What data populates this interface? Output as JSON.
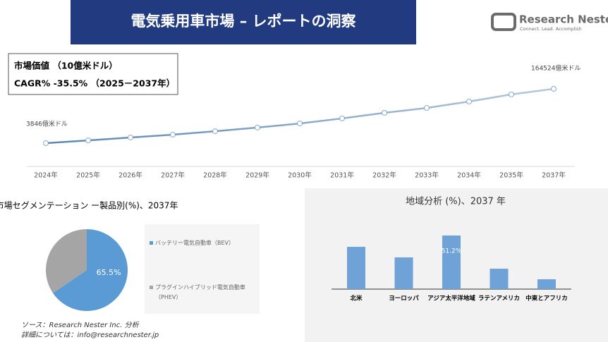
{
  "header": {
    "title": "電気乗用車市場 – レポートの洞察",
    "logo_name": "Research Nester",
    "logo_tagline": "Connect. Lead. Accomplish"
  },
  "info_box": {
    "line1": "市場価値 （10億米ドル）",
    "line2": "CAGR% -35.5% （2025－2037年）"
  },
  "chart_data": [
    {
      "type": "line",
      "categories": [
        "2024年",
        "2025年",
        "2026年",
        "2027年",
        "2028年",
        "2029年",
        "2030年",
        "2031年",
        "2032年",
        "2033年",
        "2034年",
        "2035年",
        "2037年"
      ],
      "values": [
        3846,
        12000,
        20500,
        29000,
        39000,
        50000,
        62000,
        77000,
        93500,
        108000,
        127000,
        148000,
        164524
      ],
      "value_labels": [
        "3846億米ドル",
        null,
        null,
        null,
        null,
        null,
        null,
        null,
        null,
        null,
        null,
        null,
        "164524億米ドル"
      ],
      "color": "#5b87b5"
    },
    {
      "type": "pie",
      "title": "市場セグメンテーション ー製品別(%)、2037年",
      "categories": [
        "バッテリー電気自動車（BEV）",
        "プラグインハイブリッド電気自動車（PHEV）"
      ],
      "values": [
        65.5,
        34.5
      ],
      "value_labels": [
        "65.5%",
        null
      ],
      "colors": [
        "#5b9bd5",
        "#a5a5a5"
      ]
    },
    {
      "type": "bar",
      "title": "地域分析 (%)、2037 年",
      "categories": [
        "北米",
        "ヨーロッパ",
        "アジア太平洋地域",
        "ラテンアメリカ",
        "中東とアフリカ"
      ],
      "values": [
        40.4,
        30.3,
        51.2,
        19.5,
        9.4
      ],
      "value_labels": [
        null,
        null,
        "51.2%",
        null,
        null
      ],
      "color": "#6fa3d8"
    }
  ],
  "footer": {
    "source": "ソース：Research Nester Inc. 分析",
    "details": "詳細については：info@researchnester.jp"
  }
}
